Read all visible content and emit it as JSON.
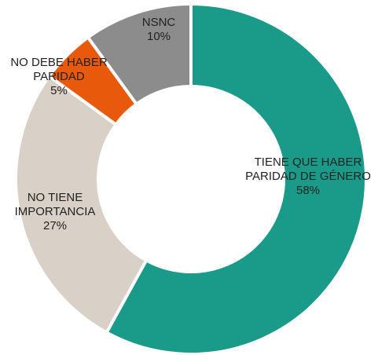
{
  "chart_data": {
    "type": "donut",
    "categories": [
      "TIENE QUE HABER PARIDAD DE GÉNERO",
      "NO TIENE IMPORTANCIA",
      "NO DEBE HABER PARIDAD",
      "NSNC"
    ],
    "values": [
      58,
      27,
      5,
      10
    ],
    "value_labels": [
      "58%",
      "27%",
      "5%",
      "10%"
    ],
    "colors": [
      "#1a9a88",
      "#d9d0c7",
      "#e8590c",
      "#8c8c8c"
    ]
  }
}
